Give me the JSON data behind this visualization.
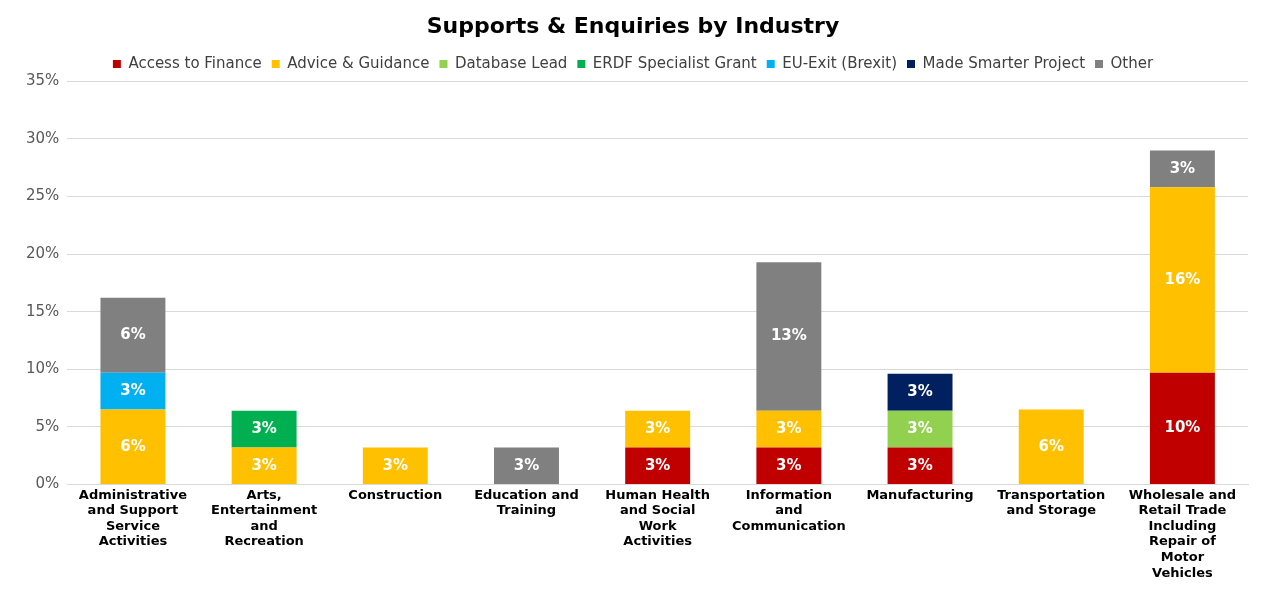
{
  "chart_data": {
    "type": "bar",
    "title": "Supports & Enquiries by Industry",
    "stacked": true,
    "legend": "top",
    "grid": "y",
    "categories": [
      "Administrative and Support Service Activities",
      "Arts, Entertainment and Recreation",
      "Construction",
      "Education and Training",
      "Human Health and Social Work Activities",
      "Information and Communication",
      "Manufacturing",
      "Transportation and Storage",
      "Wholesale and Retail Trade Including Repair of Motor Vehicles"
    ],
    "ylim": [
      0,
      35
    ],
    "yticks": [
      {
        "value": 0,
        "label": "0%"
      },
      {
        "value": 5,
        "label": "5%"
      },
      {
        "value": 10,
        "label": "10%"
      },
      {
        "value": 15,
        "label": "15%"
      },
      {
        "value": 20,
        "label": "20%"
      },
      {
        "value": 25,
        "label": "25%"
      },
      {
        "value": 30,
        "label": "30%"
      },
      {
        "value": 35,
        "label": "35%"
      }
    ],
    "series": [
      {
        "name": "Access to Finance",
        "color": "#c00000",
        "values": [
          null,
          null,
          null,
          null,
          3.2,
          3.2,
          3.2,
          null,
          9.7
        ],
        "value_labels": [
          null,
          null,
          null,
          null,
          "3%",
          "3%",
          "3%",
          null,
          "10%"
        ]
      },
      {
        "name": "Advice & Guidance",
        "color": "#ffc000",
        "values": [
          6.5,
          3.2,
          3.2,
          null,
          3.2,
          3.2,
          null,
          6.5,
          16.1
        ],
        "value_labels": [
          "6%",
          "3%",
          "3%",
          null,
          "3%",
          "3%",
          null,
          "6%",
          "16%"
        ]
      },
      {
        "name": "Database Lead",
        "color": "#92d050",
        "values": [
          null,
          null,
          null,
          null,
          null,
          null,
          3.2,
          null,
          null
        ],
        "value_labels": [
          null,
          null,
          null,
          null,
          null,
          null,
          "3%",
          null,
          null
        ]
      },
      {
        "name": "ERDF Specialist Grant",
        "color": "#00b050",
        "values": [
          null,
          3.2,
          null,
          null,
          null,
          null,
          null,
          null,
          null
        ],
        "value_labels": [
          null,
          "3%",
          null,
          null,
          null,
          null,
          null,
          null,
          null
        ]
      },
      {
        "name": "EU-Exit (Brexit)",
        "color": "#00b0f0",
        "values": [
          3.2,
          null,
          null,
          null,
          null,
          null,
          null,
          null,
          null
        ],
        "value_labels": [
          "3%",
          null,
          null,
          null,
          null,
          null,
          null,
          null,
          null
        ]
      },
      {
        "name": "Made Smarter Project",
        "color": "#002060",
        "values": [
          null,
          null,
          null,
          null,
          null,
          null,
          3.2,
          null,
          null
        ],
        "value_labels": [
          null,
          null,
          null,
          null,
          null,
          null,
          "3%",
          null,
          null
        ]
      },
      {
        "name": "Other",
        "color": "#808080",
        "values": [
          6.5,
          null,
          null,
          3.2,
          null,
          12.9,
          null,
          null,
          3.2
        ],
        "value_labels": [
          "6%",
          null,
          null,
          "3%",
          null,
          "13%",
          null,
          null,
          "3%"
        ]
      }
    ]
  }
}
